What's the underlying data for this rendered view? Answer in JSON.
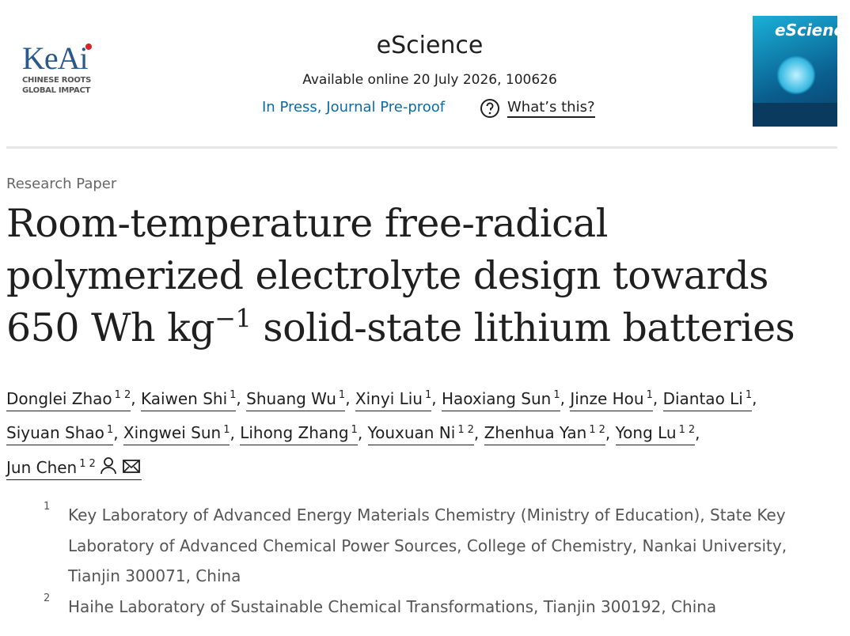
{
  "header": {
    "logo": {
      "name": "KeAi",
      "tagline_1": "CHINESE ROOTS",
      "tagline_2": "GLOBAL IMPACT"
    },
    "journal": "eScience",
    "availability": "Available online 20 July 2026, 100626",
    "status": "In Press, Journal Pre-proof",
    "help_link": "What’s this?",
    "cover_title": "eScience"
  },
  "article": {
    "type": "Research Paper",
    "title": {
      "main": "Room-temperature free-radical polymerized electrolyte design towards 650 Wh kg",
      "superscript": "−1",
      "rest": " solid-state lithium batteries"
    },
    "author_separator": ",",
    "authors": [
      {
        "name": "Donglei Zhao",
        "affiliations": [
          "1",
          "2"
        ]
      },
      {
        "name": "Kaiwen Shi",
        "affiliations": [
          "1"
        ]
      },
      {
        "name": "Shuang Wu",
        "affiliations": [
          "1"
        ]
      },
      {
        "name": "Xinyi Liu",
        "affiliations": [
          "1"
        ]
      },
      {
        "name": "Haoxiang Sun",
        "affiliations": [
          "1"
        ]
      },
      {
        "name": "Jinze Hou",
        "affiliations": [
          "1"
        ]
      },
      {
        "name": "Diantao Li",
        "affiliations": [
          "1"
        ]
      },
      {
        "name": "Siyuan Shao",
        "affiliations": [
          "1"
        ]
      },
      {
        "name": "Xingwei Sun",
        "affiliations": [
          "1"
        ]
      },
      {
        "name": "Lihong Zhang",
        "affiliations": [
          "1"
        ]
      },
      {
        "name": "Youxuan Ni",
        "affiliations": [
          "1",
          "2"
        ]
      },
      {
        "name": "Zhenhua Yan",
        "affiliations": [
          "1",
          "2"
        ]
      },
      {
        "name": "Yong Lu",
        "affiliations": [
          "1",
          "2"
        ]
      },
      {
        "name": "Jun Chen",
        "affiliations": [
          "1",
          "2"
        ]
      }
    ],
    "affiliations": [
      {
        "marker": "1",
        "text": "Key Laboratory of Advanced Energy Materials Chemistry (Ministry of Education), State Key Laboratory of Advanced Chemical Power Sources, College of Chemistry, Nankai University, Tianjin 300071, China"
      },
      {
        "marker": "2",
        "text": "Haihe Laboratory of Sustainable Chemical Transformations, Tianjin 300192, China"
      }
    ]
  }
}
